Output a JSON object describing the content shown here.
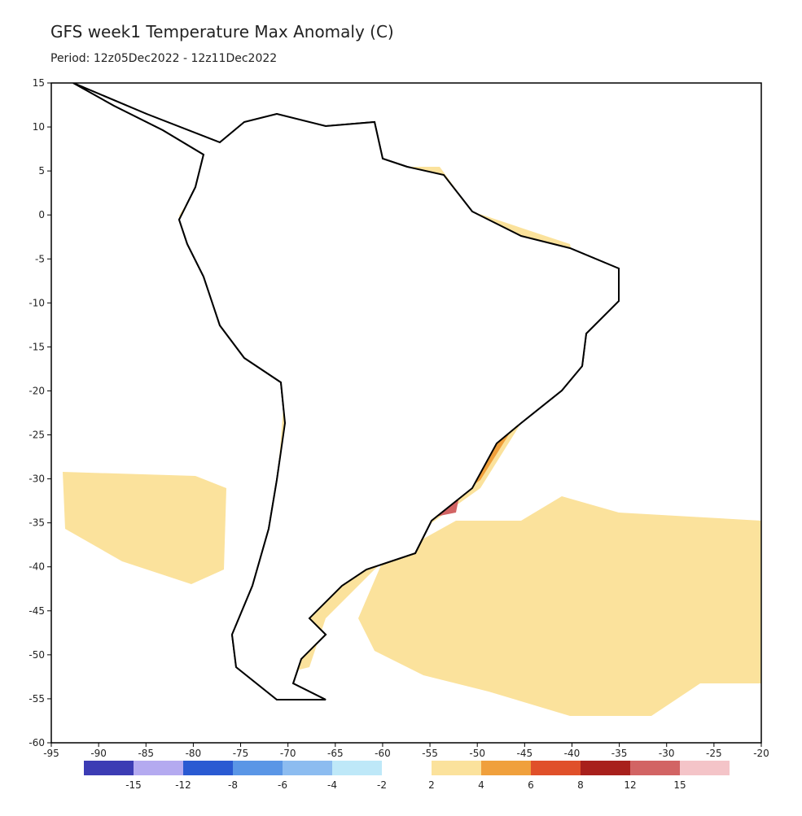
{
  "chart_data": {
    "type": "map",
    "title": "GFS week1 Temperature Max Anomaly (C)",
    "subtitle": "Period: 12z05Dec2022 - 12z11Dec2022",
    "xlim": [
      -95,
      -20
    ],
    "ylim": [
      -60,
      15
    ],
    "xticks": [
      -95,
      -90,
      -85,
      -80,
      -75,
      -70,
      -65,
      -60,
      -55,
      -50,
      -45,
      -40,
      -35,
      -30,
      -25,
      -20
    ],
    "yticks": [
      15,
      10,
      5,
      0,
      -5,
      -10,
      -15,
      -20,
      -25,
      -30,
      -35,
      -40,
      -45,
      -50,
      -55,
      -60
    ],
    "colorbar": {
      "negative": {
        "levels": [
          -15,
          -12,
          -8,
          -6,
          -4,
          -2
        ],
        "colors": [
          "#3c3cb4",
          "#b4aaf0",
          "#2a5ad2",
          "#5a96e6",
          "#8cbcf0",
          "#bee8f8"
        ]
      },
      "positive": {
        "levels": [
          2,
          4,
          6,
          8,
          12,
          15
        ],
        "colors": [
          "#fbe29c",
          "#f0a03c",
          "#e0502a",
          "#a8201c",
          "#d26464",
          "#f4c4c8"
        ]
      }
    }
  }
}
